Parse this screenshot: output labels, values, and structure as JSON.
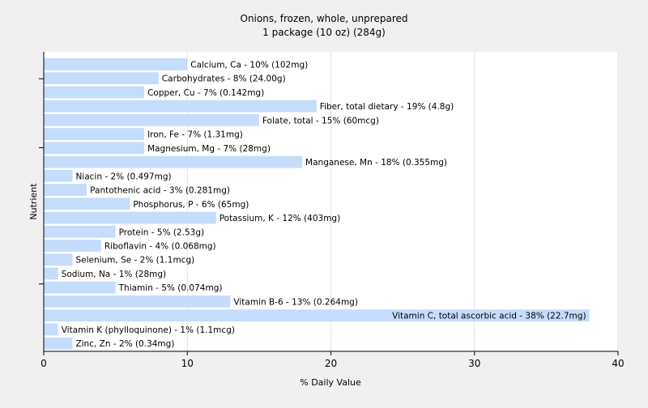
{
  "chart_data": {
    "type": "bar",
    "orientation": "horizontal",
    "title": "Onions, frozen, whole, unprepared",
    "subtitle": "1 package (10 oz) (284g)",
    "xlabel": "% Daily Value",
    "ylabel": "Nutrient",
    "xlim": [
      0,
      40
    ],
    "xticks": [
      0,
      10,
      20,
      30,
      40
    ],
    "grid": true,
    "bar_color": "#c6dcfb",
    "categories": [
      "Calcium, Ca",
      "Carbohydrates",
      "Copper, Cu",
      "Fiber, total dietary",
      "Folate, total",
      "Iron, Fe",
      "Magnesium, Mg",
      "Manganese, Mn",
      "Niacin",
      "Pantothenic acid",
      "Phosphorus, P",
      "Potassium, K",
      "Protein",
      "Riboflavin",
      "Selenium, Se",
      "Sodium, Na",
      "Thiamin",
      "Vitamin B-6",
      "Vitamin C, total ascorbic acid",
      "Vitamin K (phylloquinone)",
      "Zinc, Zn"
    ],
    "values": [
      10,
      8,
      7,
      19,
      15,
      7,
      7,
      18,
      2,
      3,
      6,
      12,
      5,
      4,
      2,
      1,
      5,
      13,
      38,
      1,
      2
    ],
    "labels": [
      "Calcium, Ca - 10% (102mg)",
      "Carbohydrates - 8% (24.00g)",
      "Copper, Cu - 7% (0.142mg)",
      "Fiber, total dietary - 19% (4.8g)",
      "Folate, total - 15% (60mcg)",
      "Iron, Fe - 7% (1.31mg)",
      "Magnesium, Mg - 7% (28mg)",
      "Manganese, Mn - 18% (0.355mg)",
      "Niacin - 2% (0.497mg)",
      "Pantothenic acid - 3% (0.281mg)",
      "Phosphorus, P - 6% (65mg)",
      "Potassium, K - 12% (403mg)",
      "Protein - 5% (2.53g)",
      "Riboflavin - 4% (0.068mg)",
      "Selenium, Se - 2% (1.1mcg)",
      "Sodium, Na - 1% (28mg)",
      "Thiamin - 5% (0.074mg)",
      "Vitamin B-6 - 13% (0.264mg)",
      "Vitamin C, total ascorbic acid - 38% (22.7mg)",
      "Vitamin K (phylloquinone) - 1% (1.1mcg)",
      "Zinc, Zn - 2% (0.34mg)"
    ]
  }
}
